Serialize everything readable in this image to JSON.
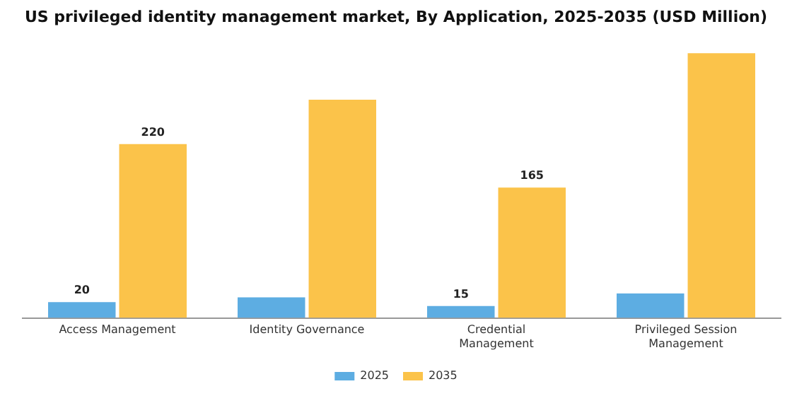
{
  "chart_data": {
    "type": "bar",
    "title": "US privileged identity management market, By Application, 2025-2035 (USD Million)",
    "categories": [
      "Access Management",
      "Identity Governance",
      "Credential Management",
      "Privileged Session Management"
    ],
    "relative": false,
    "series": [
      {
        "name": "2025",
        "color": "#5dade2",
        "values": [
          20,
          26,
          15,
          31
        ],
        "value_labels": [
          "20",
          null,
          "15",
          null
        ]
      },
      {
        "name": "2035",
        "color": "#fbc34a",
        "values": [
          220,
          276,
          165,
          335
        ],
        "value_labels": [
          "220",
          null,
          "165",
          null
        ]
      }
    ],
    "legend": "bottom",
    "grid": false
  }
}
